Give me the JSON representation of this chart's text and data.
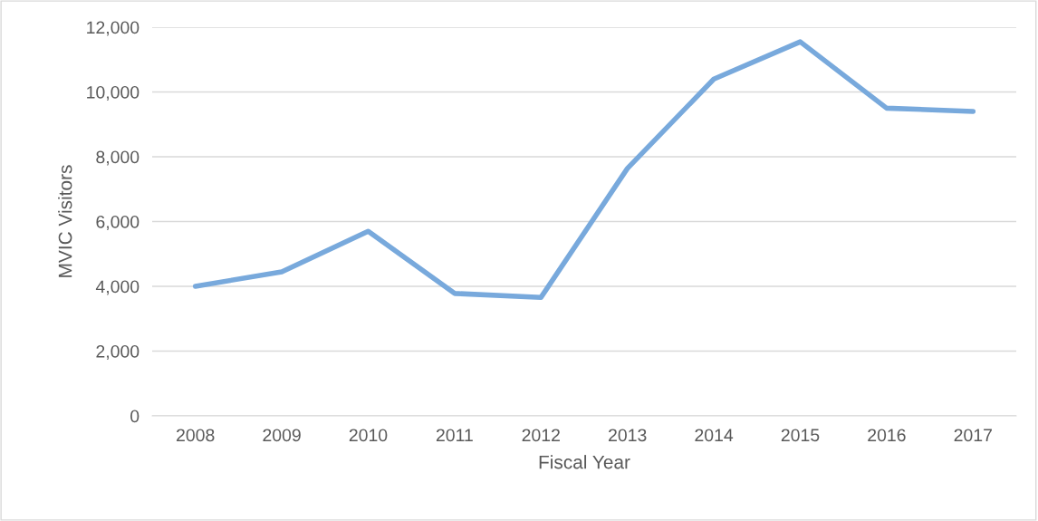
{
  "chart_data": {
    "type": "line",
    "xlabel": "Fiscal Year",
    "ylabel": "MVIC Visitors",
    "categories": [
      "2008",
      "2009",
      "2010",
      "2011",
      "2012",
      "2013",
      "2014",
      "2015",
      "2016",
      "2017"
    ],
    "series": [
      {
        "color": "#78a9dc",
        "values": [
          4000,
          4450,
          5700,
          3780,
          3660,
          7640,
          10400,
          11550,
          9500,
          9400
        ]
      }
    ],
    "ylim": [
      0,
      12000
    ],
    "yticks": [
      0,
      {
        "value": 2000,
        "label": "2,000"
      },
      {
        "value": 4000,
        "label": "4,000"
      },
      {
        "value": 6000,
        "label": "6,000"
      },
      {
        "value": 8000,
        "label": "8,000"
      },
      {
        "value": 10000,
        "label": "10,000"
      },
      {
        "value": 12000,
        "label": "12,000"
      }
    ],
    "grid": "y",
    "legend": false,
    "marker": "none",
    "line_style": "solid"
  }
}
